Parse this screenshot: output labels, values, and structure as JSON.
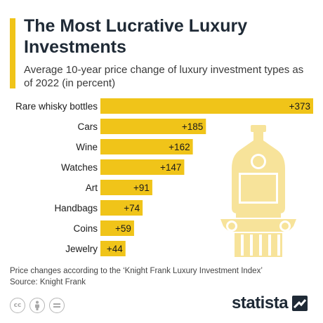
{
  "title": "The Most Lucrative Luxury Investments",
  "subtitle": "Average 10-year price change of luxury investment types as of 2022 (in percent)",
  "source_note": "Price changes according to the ‘Knight Frank Luxury Investment Index’",
  "source": "Source: Knight Frank",
  "brand": "statista",
  "colors": {
    "accent": "#f0c419",
    "bar": "#f0c419",
    "illustration": "#f7e39a",
    "title": "#1f2a36"
  },
  "license_icons": [
    "cc-icon",
    "attribution-icon",
    "no-derivatives-icon"
  ],
  "chart_data": {
    "type": "bar",
    "orientation": "horizontal",
    "categories": [
      "Rare whisky bottles",
      "Cars",
      "Wine",
      "Watches",
      "Art",
      "Handbags",
      "Coins",
      "Jewelry"
    ],
    "values": [
      373,
      185,
      162,
      147,
      91,
      74,
      59,
      44
    ],
    "labels": [
      "+373",
      "+185",
      "+162",
      "+147",
      "+91",
      "+74",
      "+59",
      "+44"
    ],
    "xlim": [
      0,
      373
    ],
    "grid": false,
    "title": "",
    "xlabel": "",
    "ylabel": ""
  }
}
